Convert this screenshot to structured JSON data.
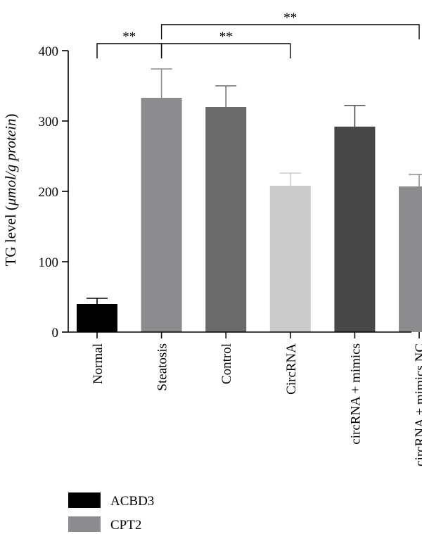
{
  "chart_data": {
    "type": "bar",
    "ylabel_prefix": "TG level (",
    "ylabel_unit": "μmol/g protein",
    "ylabel_suffix": ")",
    "ylim": [
      0,
      400
    ],
    "yticks": [
      0,
      100,
      200,
      300,
      400
    ],
    "grid": false,
    "categories": [
      "Normal",
      "Steatosis",
      "Control",
      "CircRNA",
      "circRNA + mimics",
      "circRNA + mimics NC"
    ],
    "values": [
      40,
      333,
      320,
      208,
      292,
      207
    ],
    "errors": [
      8,
      41,
      30,
      18,
      30,
      17
    ],
    "bar_colors": [
      "#000000",
      "#8c8c8e",
      "#6b6b6b",
      "#cbcbcb",
      "#474747",
      "#8c8c8e"
    ],
    "significance": [
      {
        "from": 0,
        "to": 1,
        "label": "**"
      },
      {
        "from": 1,
        "to": 3,
        "label": "**"
      },
      {
        "from": 1,
        "to": 5,
        "label": "**"
      }
    ],
    "legend": {
      "placement": "bottom-left",
      "items": [
        {
          "label": "ACBD3",
          "color": "#000000"
        },
        {
          "label": "CPT2",
          "color": "#8c8c8e"
        }
      ]
    }
  }
}
